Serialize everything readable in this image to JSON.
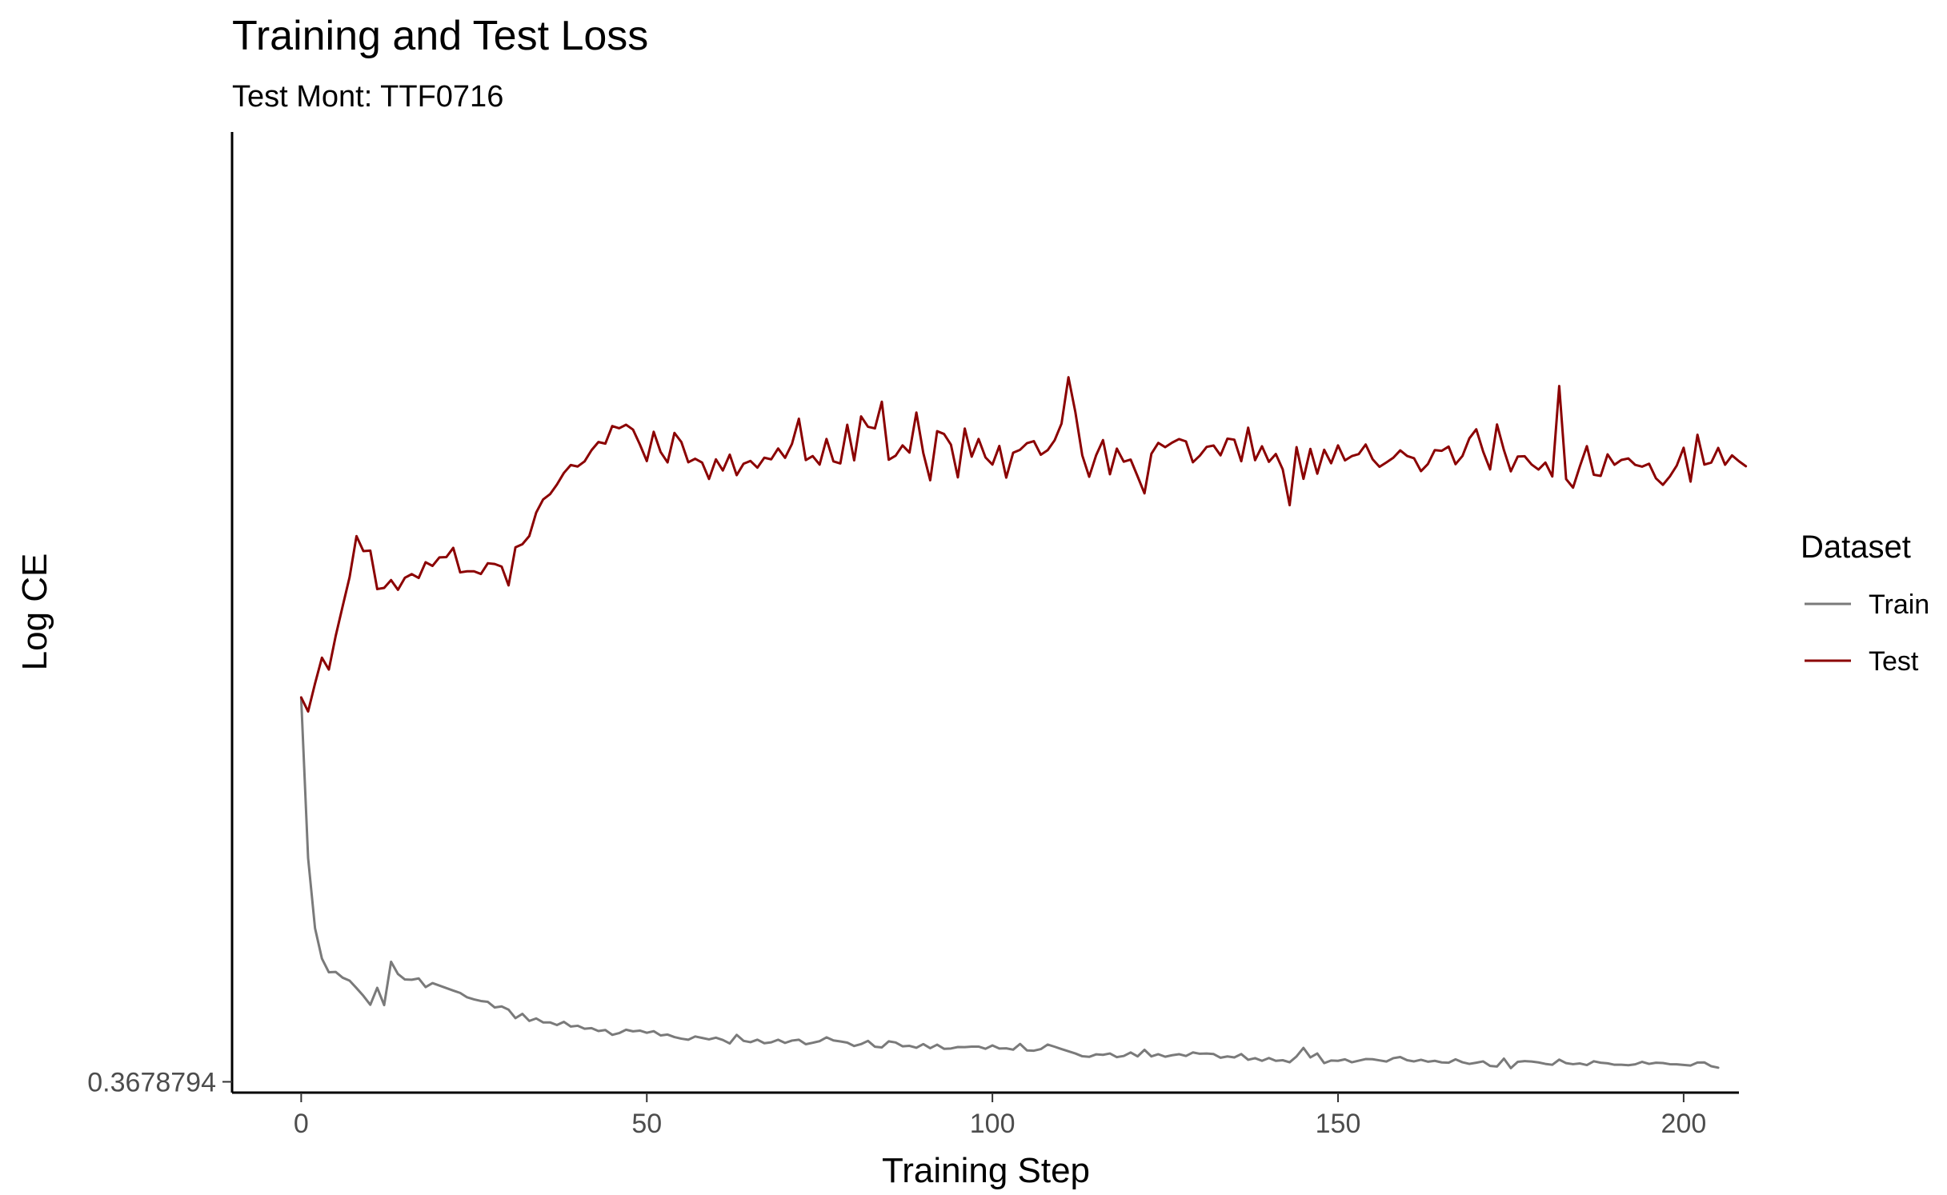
{
  "chart_data": {
    "type": "line",
    "title": "Training and Test Loss",
    "subtitle": "Test Mont: TTF0716",
    "xlabel": "Training Step",
    "ylabel": "Log CE",
    "xlim": [
      -10,
      208
    ],
    "ylim": [
      0.3605,
      1.0158
    ],
    "x_ticks": [
      0,
      50,
      100,
      150,
      200
    ],
    "x_tick_labels": [
      "0",
      "50",
      "100",
      "150",
      "200"
    ],
    "y_ticks": [
      0.3678794
    ],
    "y_tick_labels": [
      "0.3678794"
    ],
    "grid": false,
    "legend": {
      "title": "Dataset",
      "position": "right"
    },
    "series": [
      {
        "name": "Train",
        "color": "#7a7a7a",
        "x_start": 0,
        "x_step": 1,
        "values": [
          0.6293,
          0.5205,
          0.4727,
          0.4519,
          0.4426,
          0.4428,
          0.4389,
          0.4369,
          0.4318,
          0.4265,
          0.4204,
          0.432,
          0.4202,
          0.4498,
          0.4414,
          0.4377,
          0.4375,
          0.4384,
          0.4325,
          0.4352,
          0.4335,
          0.4318,
          0.4301,
          0.4285,
          0.4255,
          0.4241,
          0.423,
          0.4224,
          0.4186,
          0.4193,
          0.4171,
          0.4113,
          0.4142,
          0.4094,
          0.4111,
          0.4084,
          0.4084,
          0.4066,
          0.4088,
          0.4056,
          0.4061,
          0.4041,
          0.4045,
          0.4025,
          0.4032,
          0.3999,
          0.4011,
          0.4034,
          0.4023,
          0.4028,
          0.4013,
          0.4024,
          0.3995,
          0.4001,
          0.3984,
          0.3973,
          0.3966,
          0.3988,
          0.3978,
          0.3968,
          0.398,
          0.3964,
          0.394,
          0.3999,
          0.3958,
          0.3949,
          0.3966,
          0.3942,
          0.3948,
          0.3966,
          0.3944,
          0.396,
          0.3966,
          0.3935,
          0.3945,
          0.3956,
          0.3982,
          0.3961,
          0.3954,
          0.3946,
          0.3923,
          0.3936,
          0.3958,
          0.3918,
          0.3913,
          0.3955,
          0.3947,
          0.3921,
          0.3924,
          0.3911,
          0.3936,
          0.3908,
          0.3932,
          0.3904,
          0.3906,
          0.3916,
          0.3915,
          0.3919,
          0.3919,
          0.3904,
          0.3927,
          0.3906,
          0.3907,
          0.3898,
          0.3937,
          0.3893,
          0.3891,
          0.3902,
          0.3933,
          0.3918,
          0.3902,
          0.3887,
          0.3872,
          0.3853,
          0.3849,
          0.3866,
          0.3863,
          0.3872,
          0.3847,
          0.3855,
          0.3879,
          0.3852,
          0.3897,
          0.3852,
          0.3867,
          0.385,
          0.386,
          0.3867,
          0.3855,
          0.3879,
          0.387,
          0.3872,
          0.3868,
          0.3843,
          0.3852,
          0.3845,
          0.3868,
          0.3829,
          0.384,
          0.3822,
          0.3841,
          0.3822,
          0.3826,
          0.3812,
          0.3852,
          0.391,
          0.3845,
          0.3872,
          0.3806,
          0.3824,
          0.3822,
          0.3832,
          0.3812,
          0.3823,
          0.3834,
          0.3833,
          0.3825,
          0.3817,
          0.384,
          0.3848,
          0.3826,
          0.3818,
          0.3829,
          0.3816,
          0.3822,
          0.3811,
          0.3809,
          0.3832,
          0.3812,
          0.3801,
          0.3809,
          0.3818,
          0.3787,
          0.3783,
          0.3837,
          0.3772,
          0.3815,
          0.382,
          0.3817,
          0.3811,
          0.3801,
          0.3795,
          0.383,
          0.3806,
          0.3799,
          0.3804,
          0.3793,
          0.3819,
          0.3809,
          0.3805,
          0.3795,
          0.3795,
          0.3792,
          0.3798,
          0.3815,
          0.3801,
          0.3809,
          0.3807,
          0.3799,
          0.3798,
          0.3794,
          0.379,
          0.381,
          0.3811,
          0.3785,
          0.3775
        ]
      },
      {
        "name": "Test",
        "color": "#8b0000",
        "x_start": 0,
        "x_step": 1,
        "values": [
          0.6301,
          0.6205,
          0.6395,
          0.6572,
          0.6491,
          0.6722,
          0.6923,
          0.7121,
          0.7401,
          0.7299,
          0.7302,
          0.704,
          0.7048,
          0.7101,
          0.7035,
          0.7117,
          0.7142,
          0.7116,
          0.7223,
          0.7198,
          0.7256,
          0.7258,
          0.7321,
          0.7154,
          0.7161,
          0.7161,
          0.7143,
          0.7216,
          0.7211,
          0.7193,
          0.7065,
          0.7325,
          0.7346,
          0.7402,
          0.7562,
          0.7651,
          0.7687,
          0.7753,
          0.7832,
          0.7886,
          0.7876,
          0.7911,
          0.7987,
          0.8043,
          0.8032,
          0.8152,
          0.8137,
          0.8161,
          0.8128,
          0.8026,
          0.7913,
          0.8113,
          0.7975,
          0.7904,
          0.8105,
          0.8043,
          0.7905,
          0.7929,
          0.7903,
          0.7791,
          0.7925,
          0.7849,
          0.7957,
          0.7817,
          0.7895,
          0.7914,
          0.7868,
          0.7936,
          0.7925,
          0.7999,
          0.7935,
          0.803,
          0.8202,
          0.792,
          0.7947,
          0.7889,
          0.8064,
          0.7911,
          0.7897,
          0.8161,
          0.7918,
          0.8218,
          0.8147,
          0.8136,
          0.8318,
          0.7922,
          0.795,
          0.802,
          0.7971,
          0.8244,
          0.7968,
          0.7782,
          0.8117,
          0.8098,
          0.8025,
          0.7802,
          0.8135,
          0.7943,
          0.8064,
          0.7938,
          0.7889,
          0.8016,
          0.78,
          0.797,
          0.799,
          0.8035,
          0.8049,
          0.7956,
          0.7988,
          0.8055,
          0.8169,
          0.8485,
          0.8247,
          0.7952,
          0.7806,
          0.7952,
          0.8056,
          0.7823,
          0.7998,
          0.7909,
          0.7923,
          0.7809,
          0.7693,
          0.7963,
          0.8037,
          0.8008,
          0.8039,
          0.8063,
          0.8047,
          0.7905,
          0.795,
          0.801,
          0.8019,
          0.7952,
          0.8066,
          0.8059,
          0.7912,
          0.8141,
          0.7919,
          0.8014,
          0.7908,
          0.7961,
          0.7856,
          0.7612,
          0.8008,
          0.7792,
          0.7996,
          0.7827,
          0.799,
          0.7898,
          0.802,
          0.7918,
          0.7947,
          0.7961,
          0.8026,
          0.7926,
          0.7874,
          0.7904,
          0.7936,
          0.7986,
          0.7948,
          0.7932,
          0.7844,
          0.7893,
          0.7988,
          0.7983,
          0.8012,
          0.7892,
          0.7948,
          0.8068,
          0.813,
          0.7977,
          0.7856,
          0.8163,
          0.7988,
          0.7843,
          0.7944,
          0.7946,
          0.789,
          0.7855,
          0.7903,
          0.7808,
          0.8425,
          0.779,
          0.7732,
          0.7879,
          0.8015,
          0.782,
          0.7812,
          0.7959,
          0.7888,
          0.7921,
          0.7931,
          0.7887,
          0.7875,
          0.7895,
          0.7795,
          0.7751,
          0.7808,
          0.7882,
          0.8004,
          0.7773,
          0.8093,
          0.7889,
          0.7903,
          0.8003,
          0.7888,
          0.7952,
          0.7912,
          0.7878
        ]
      }
    ]
  }
}
